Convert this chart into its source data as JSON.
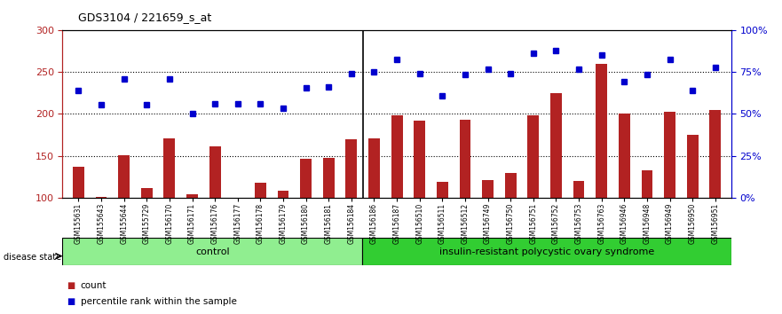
{
  "title": "GDS3104 / 221659_s_at",
  "samples": [
    "GSM155631",
    "GSM155643",
    "GSM155644",
    "GSM155729",
    "GSM156170",
    "GSM156171",
    "GSM156176",
    "GSM156177",
    "GSM156178",
    "GSM156179",
    "GSM156180",
    "GSM156181",
    "GSM156184",
    "GSM156186",
    "GSM156187",
    "GSM156510",
    "GSM156511",
    "GSM156512",
    "GSM156749",
    "GSM156750",
    "GSM156751",
    "GSM156752",
    "GSM156753",
    "GSM156763",
    "GSM156946",
    "GSM156948",
    "GSM156949",
    "GSM156950",
    "GSM156951"
  ],
  "bar_values": [
    137,
    101,
    151,
    112,
    171,
    104,
    161,
    100,
    118,
    108,
    147,
    148,
    170,
    171,
    198,
    192,
    119,
    193,
    121,
    130,
    198,
    225,
    120,
    259,
    200,
    133,
    202,
    175,
    205
  ],
  "blue_values": [
    228,
    211,
    242,
    211,
    242,
    200,
    212,
    212,
    212,
    207,
    231,
    232,
    248,
    250,
    265,
    248,
    221,
    247,
    253,
    248,
    272,
    275,
    253,
    270,
    238,
    247,
    265,
    228,
    255
  ],
  "control_count": 13,
  "ylim_left": [
    100,
    300
  ],
  "ylim_right": [
    0,
    100
  ],
  "yticks_left": [
    100,
    150,
    200,
    250,
    300
  ],
  "yticks_right": [
    0,
    25,
    50,
    75,
    100
  ],
  "ytick_labels_right": [
    "0%",
    "25%",
    "50%",
    "75%",
    "100%"
  ],
  "bar_color": "#B22222",
  "blue_color": "#0000CD",
  "grid_color": "#000000",
  "control_label": "control",
  "disease_label": "insulin-resistant polycystic ovary syndrome",
  "control_bg": "#90EE90",
  "disease_bg": "#32CD32",
  "legend_count": "count",
  "legend_pct": "percentile rank within the sample"
}
